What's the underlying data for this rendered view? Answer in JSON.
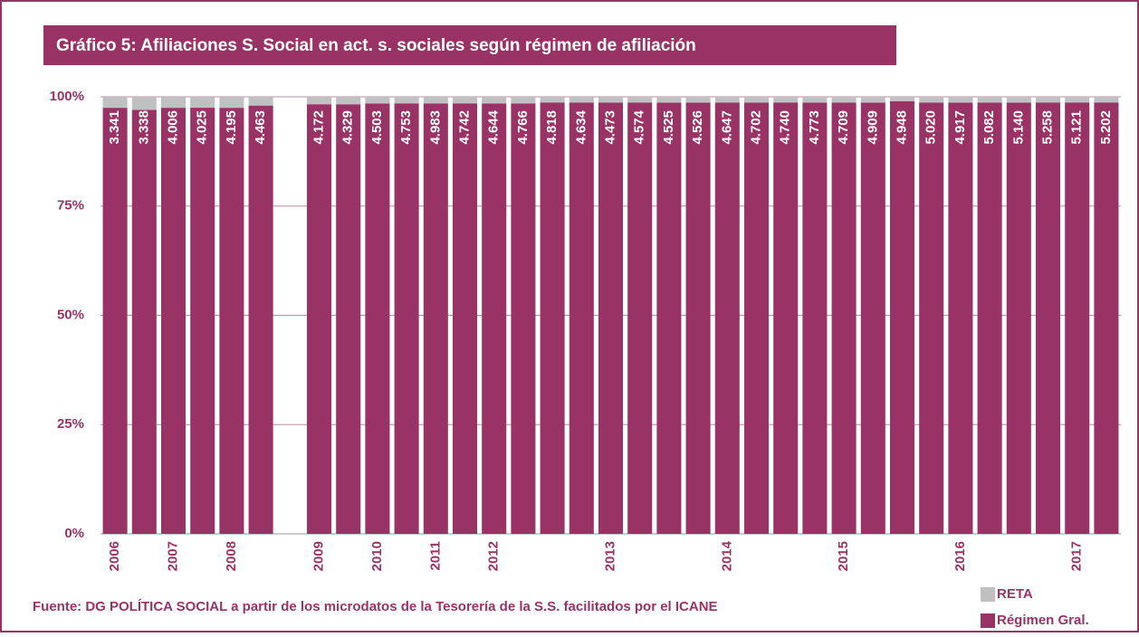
{
  "chart_data": {
    "type": "stacked_percent_bar",
    "title": "Gráfico 5: Afiliaciones S. Social en act. s. sociales según régimen de afiliación",
    "source": "Fuente: DG POLÍTICA SOCIAL a partir de los microdatos de la Tesorería de la S.S. facilitados por el ICANE",
    "categories": [
      "2006",
      null,
      "2007",
      null,
      "2008",
      null,
      null,
      "2009",
      null,
      "2010",
      null,
      "2011",
      null,
      "2012",
      null,
      null,
      null,
      "2013",
      null,
      null,
      null,
      "2014",
      null,
      null,
      null,
      "2015",
      null,
      null,
      null,
      "2016",
      null,
      null,
      null,
      "2017",
      null
    ],
    "series": [
      {
        "name": "Régimen Gral.",
        "color": "#993366",
        "values": [
          3341,
          3338,
          4006,
          4025,
          4195,
          4463,
          null,
          4172,
          4329,
          4503,
          4753,
          4983,
          4742,
          4644,
          4766,
          4818,
          4634,
          4473,
          4574,
          4525,
          4526,
          4647,
          4702,
          4740,
          4773,
          4709,
          4909,
          4948,
          5020,
          4917,
          5082,
          5140,
          5258,
          5121,
          5202
        ],
        "value_labels": [
          "3.341",
          "3.338",
          "4.006",
          "4.025",
          "4.195",
          "4.463",
          null,
          "4.172",
          "4.329",
          "4.503",
          "4.753",
          "4.983",
          "4.742",
          "4.644",
          "4.766",
          "4.818",
          "4.634",
          "4.473",
          "4.574",
          "4.525",
          "4.526",
          "4.647",
          "4.702",
          "4.740",
          "4.773",
          "4.709",
          "4.909",
          "4.948",
          "5.020",
          "4.917",
          "5.082",
          "5.140",
          "5.258",
          "5.121",
          "5.202"
        ]
      },
      {
        "name": "RETA",
        "color": "#c0c0c0",
        "values": [
          86,
          103,
          103,
          103,
          108,
          91,
          null,
          72,
          75,
          69,
          72,
          76,
          72,
          71,
          73,
          63,
          61,
          59,
          60,
          60,
          60,
          61,
          62,
          62,
          63,
          62,
          65,
          50,
          66,
          65,
          67,
          68,
          69,
          67,
          68
        ]
      }
    ],
    "ylim": [
      0,
      100
    ],
    "yticks": [
      {
        "value": 0,
        "label": "0%"
      },
      {
        "value": 25,
        "label": "25%"
      },
      {
        "value": 50,
        "label": "50%"
      },
      {
        "value": 75,
        "label": "75%"
      },
      {
        "value": 100,
        "label": "100%"
      }
    ],
    "grid": true,
    "legend": "bottom-right"
  }
}
